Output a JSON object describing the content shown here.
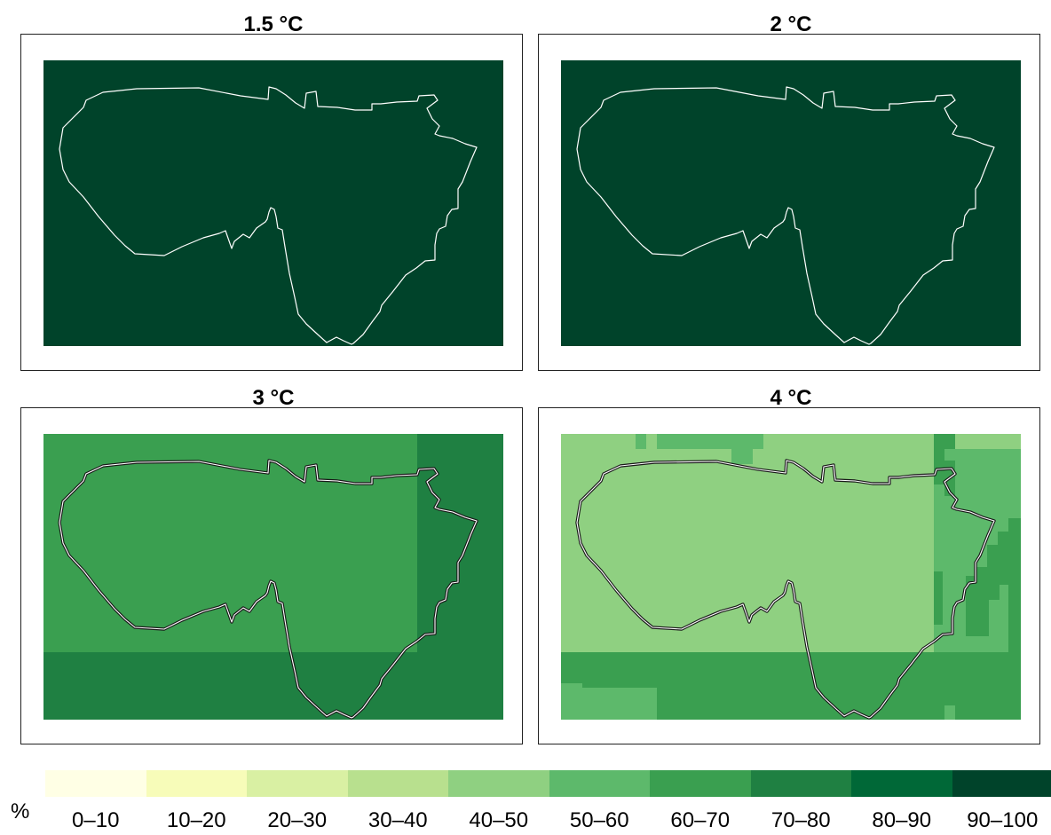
{
  "panels": [
    {
      "title": "1.5 °C",
      "base_class": "90–100",
      "patches": []
    },
    {
      "title": "2 °C",
      "base_class": "90–100",
      "patches": []
    },
    {
      "title": "3 °C",
      "base_class": "60–70",
      "patches": [
        {
          "class": "70–80",
          "region": "east-strip"
        },
        {
          "class": "70–80",
          "region": "south-strip"
        }
      ]
    },
    {
      "title": "4 °C",
      "base_class": "40–50",
      "patches": [
        {
          "class": "50–60",
          "region": "north-edge"
        },
        {
          "class": "60–70",
          "region": "north-edge-cells"
        },
        {
          "class": "50–60",
          "region": "east-strip"
        },
        {
          "class": "60–70",
          "region": "east-edge-cells"
        },
        {
          "class": "60–70",
          "region": "south-strip"
        },
        {
          "class": "50–60",
          "region": "south-west-cells"
        }
      ]
    }
  ],
  "legend": {
    "unit": "%",
    "classes": [
      {
        "label": "0–10",
        "color": "#ffffe5"
      },
      {
        "label": "10–20",
        "color": "#f7fcb9"
      },
      {
        "label": "20–30",
        "color": "#d9f0a3"
      },
      {
        "label": "30–40",
        "color": "#b8e08e"
      },
      {
        "label": "40–50",
        "color": "#8fd081"
      },
      {
        "label": "50–60",
        "color": "#5db96b"
      },
      {
        "label": "60–70",
        "color": "#3a9f50"
      },
      {
        "label": "70–80",
        "color": "#1f8042"
      },
      {
        "label": "80–90",
        "color": "#006837"
      },
      {
        "label": "90–100",
        "color": "#00432a"
      }
    ]
  }
}
